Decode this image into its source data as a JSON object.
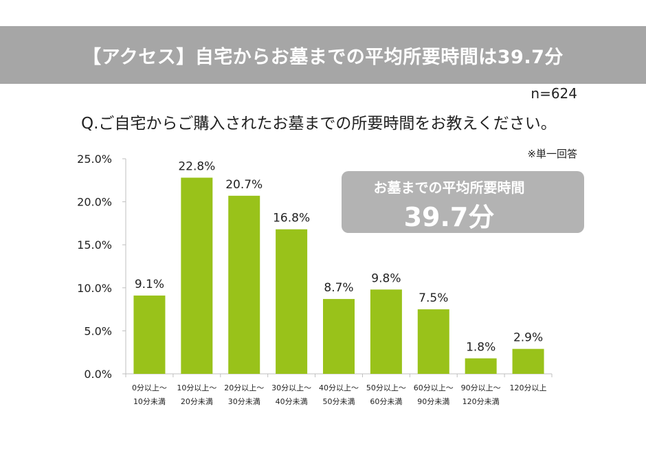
{
  "banner": {
    "title": "【アクセス】自宅からお墓までの平均所要時間は39.7分"
  },
  "sample_size": "n=624",
  "question": "Q.ご自宅からご購入されたお墓までの所要時間をお教えください。",
  "note": "※単一回答",
  "callout": {
    "label": "お墓までの平均所要時間",
    "value": "39.7分"
  },
  "colors": {
    "bar": "#99c21a",
    "banner": "#a6a6a6",
    "callout": "#b3b3b3",
    "axis": "#bfbfbf"
  },
  "chart_data": {
    "type": "bar",
    "categories": [
      [
        "0分以上～",
        "10分未満"
      ],
      [
        "10分以上～",
        "20分未満"
      ],
      [
        "20分以上～",
        "30分未満"
      ],
      [
        "30分以上～",
        "40分未満"
      ],
      [
        "40分以上～",
        "50分未満"
      ],
      [
        "50分以上～",
        "60分未満"
      ],
      [
        "60分以上～",
        "90分未満"
      ],
      [
        "90分以上～",
        "120分未満"
      ],
      [
        "120分以上"
      ]
    ],
    "values": [
      9.1,
      22.8,
      20.7,
      16.8,
      8.7,
      9.8,
      7.5,
      1.8,
      2.9
    ],
    "data_labels": [
      "9.1%",
      "22.8%",
      "20.7%",
      "16.8%",
      "8.7%",
      "9.8%",
      "7.5%",
      "1.8%",
      "2.9%"
    ],
    "ylim": [
      0,
      25
    ],
    "y_ticks": [
      0,
      5,
      10,
      15,
      20,
      25
    ],
    "y_tick_labels": [
      "0.0%",
      "5.0%",
      "10.0%",
      "15.0%",
      "20.0%",
      "25.0%"
    ],
    "grid": false
  }
}
